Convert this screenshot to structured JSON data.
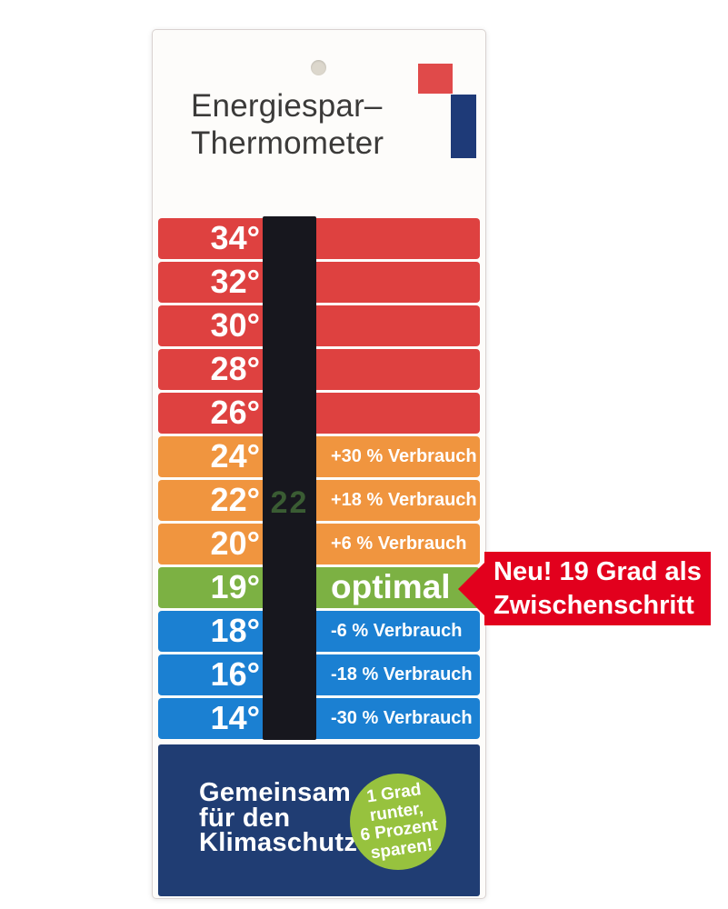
{
  "card": {
    "title_line1": "Energiespar–",
    "title_line2": "Thermometer"
  },
  "thermometer": {
    "lcd_value": "22",
    "rows": [
      {
        "temp": "34°",
        "color": "red",
        "note": ""
      },
      {
        "temp": "32°",
        "color": "red",
        "note": ""
      },
      {
        "temp": "30°",
        "color": "red",
        "note": ""
      },
      {
        "temp": "28°",
        "color": "red",
        "note": ""
      },
      {
        "temp": "26°",
        "color": "red",
        "note": ""
      },
      {
        "temp": "24°",
        "color": "orange",
        "note": "+30 % Verbrauch"
      },
      {
        "temp": "22°",
        "color": "orange",
        "note": "+18 % Verbrauch"
      },
      {
        "temp": "20°",
        "color": "orange",
        "note": "+6 % Verbrauch"
      },
      {
        "temp": "19°",
        "color": "green",
        "note": "optimal",
        "emphasis": true
      },
      {
        "temp": "18°",
        "color": "blue",
        "note": "-6 % Verbrauch"
      },
      {
        "temp": "16°",
        "color": "blue",
        "note": "-18 % Verbrauch"
      },
      {
        "temp": "14°",
        "color": "blue",
        "note": "-30 % Verbrauch"
      }
    ]
  },
  "banner": {
    "line1": "Neu! 19 Grad als",
    "line2": "Zwischenschritt"
  },
  "footer": {
    "line1": "Gemeinsam",
    "line2": "für den",
    "line3": "Klimaschutz",
    "badge_lines": [
      "1 Grad",
      "runter,",
      "6 Prozent",
      "sparen!"
    ]
  },
  "colors": {
    "red": "#de4140",
    "orange": "#f0953f",
    "green": "#7cb143",
    "blue": "#1b80d2",
    "navy": "#203d73",
    "strip": "#17171e",
    "lcd": "#3a5c33",
    "banner": "#e2001d",
    "circle": "#97c23e",
    "logo_red": "#e04a4a",
    "logo_blue": "#1e3a78",
    "hole": "#dcd7cc",
    "title_text": "#3b3a39"
  }
}
